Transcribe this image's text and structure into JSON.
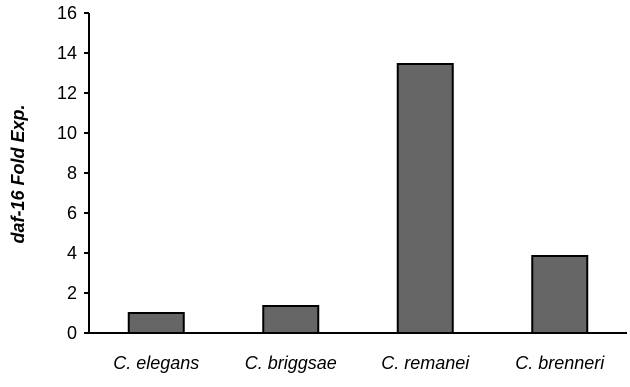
{
  "chart_data": {
    "type": "bar",
    "categories": [
      "C. elegans",
      "C. briggsae",
      "C. remanei",
      "C. brenneri"
    ],
    "values": [
      1.0,
      1.35,
      13.45,
      3.85
    ],
    "xlabel": "",
    "ylabel": "daf-16 Fold Exp.",
    "ylim": [
      0,
      16
    ],
    "yticks": [
      0,
      2,
      4,
      6,
      8,
      10,
      12,
      14,
      16
    ],
    "grid": false,
    "legend": "none",
    "bar_color": "#666666",
    "bar_edge_color": "#000000"
  }
}
